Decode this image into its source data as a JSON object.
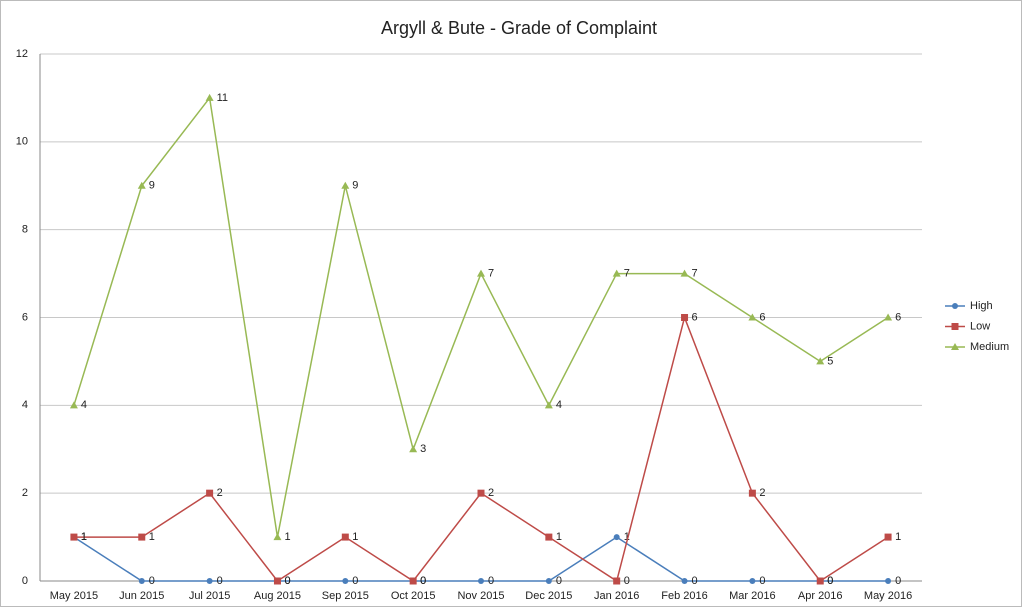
{
  "chart_data": {
    "type": "line",
    "title": "Argyll & Bute - Grade of Complaint",
    "categories": [
      "May 2015",
      "Jun 2015",
      "Jul 2015",
      "Aug 2015",
      "Sep 2015",
      "Oct 2015",
      "Nov 2015",
      "Dec 2015",
      "Jan 2016",
      "Feb 2016",
      "Mar 2016",
      "Apr 2016",
      "May 2016"
    ],
    "series": [
      {
        "name": "High",
        "color": "#4a7ebb",
        "marker": "circle",
        "values": [
          1,
          0,
          0,
          0,
          0,
          0,
          0,
          0,
          1,
          0,
          0,
          0,
          0
        ]
      },
      {
        "name": "Low",
        "color": "#be4b48",
        "marker": "square",
        "values": [
          1,
          1,
          2,
          0,
          1,
          0,
          2,
          1,
          0,
          6,
          2,
          0,
          1
        ]
      },
      {
        "name": "Medium",
        "color": "#98b954",
        "marker": "triangle",
        "values": [
          4,
          9,
          11,
          1,
          9,
          3,
          7,
          4,
          7,
          7,
          6,
          5,
          6
        ]
      }
    ],
    "ylim": [
      0,
      12
    ],
    "yticks": [
      0,
      2,
      4,
      6,
      8,
      10,
      12
    ],
    "grid": true,
    "legend": "right",
    "data_labels": true
  }
}
